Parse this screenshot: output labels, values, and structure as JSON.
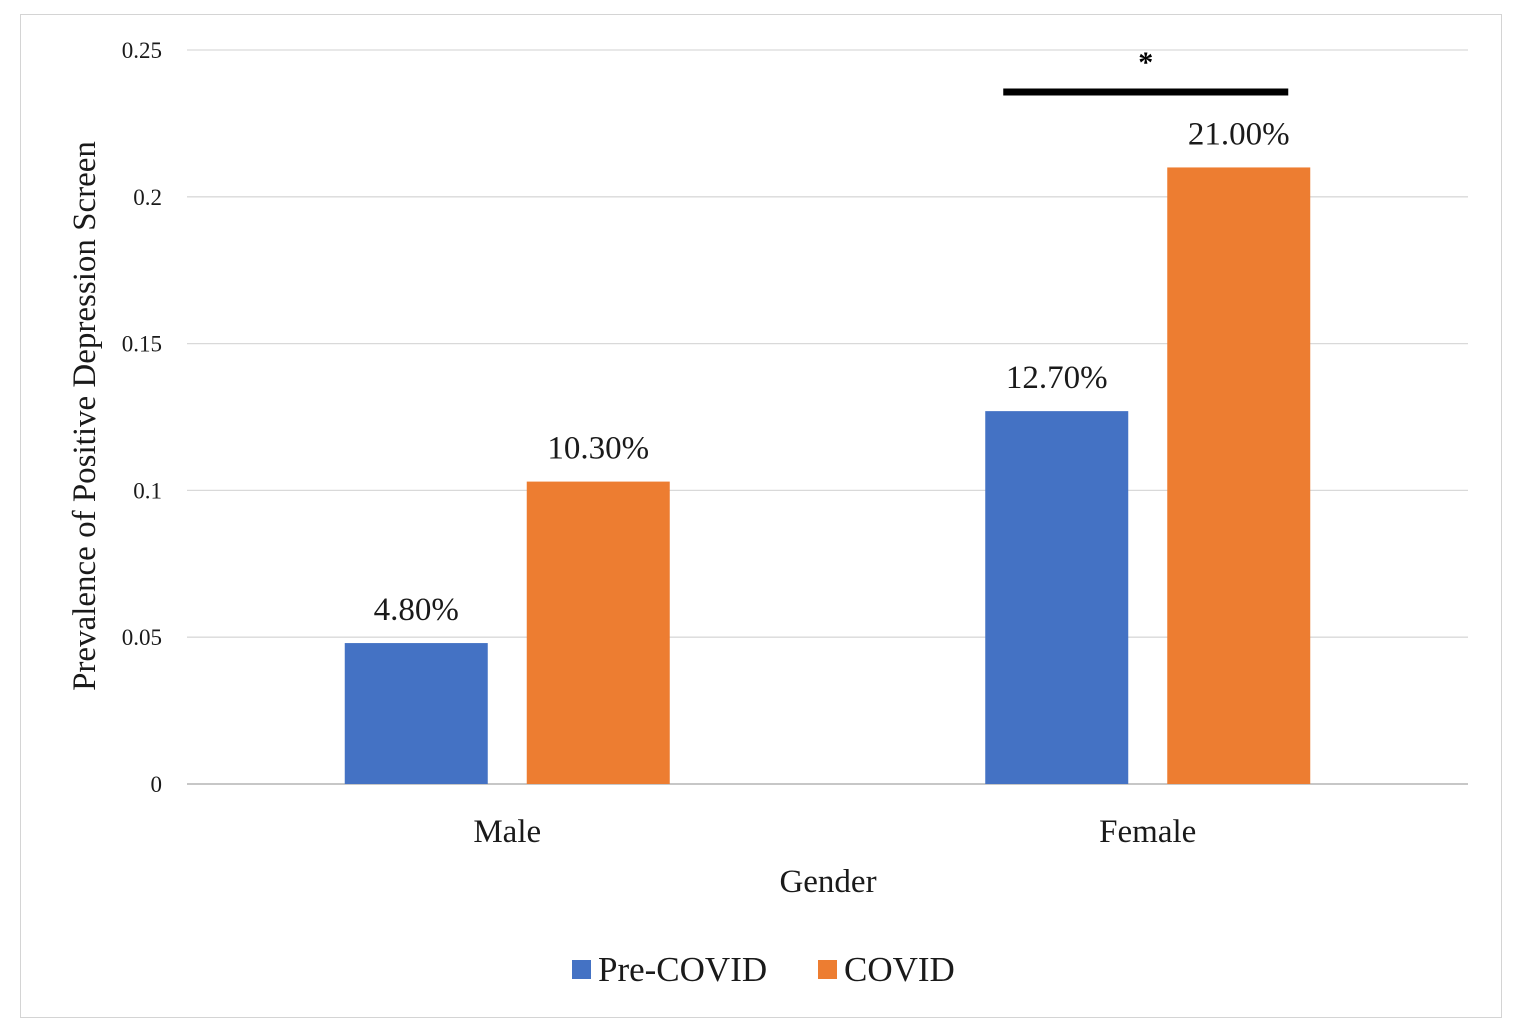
{
  "chart_data": {
    "type": "bar",
    "categories": [
      "Male",
      "Female"
    ],
    "series": [
      {
        "name": "Pre-COVID",
        "values": [
          0.048,
          0.127
        ],
        "labels": [
          "4.80%",
          "12.70%"
        ],
        "color": "#4472C4"
      },
      {
        "name": "COVID",
        "values": [
          0.103,
          0.21
        ],
        "labels": [
          "10.30%",
          "21.00%"
        ],
        "color": "#ED7D31"
      }
    ],
    "xlabel": "Gender",
    "ylabel": "Prevalence of Positive Depression Screen",
    "ylim": [
      0,
      0.25
    ],
    "yticks": [
      "0",
      "0.05",
      "0.1",
      "0.15",
      "0.2",
      "0.25"
    ],
    "grid": true,
    "legend": {
      "position": "bottom",
      "entries": [
        "Pre-COVID",
        "COVID"
      ]
    },
    "annotations": [
      {
        "text": "*",
        "category": "Female",
        "kind": "significance-bracket"
      }
    ]
  }
}
